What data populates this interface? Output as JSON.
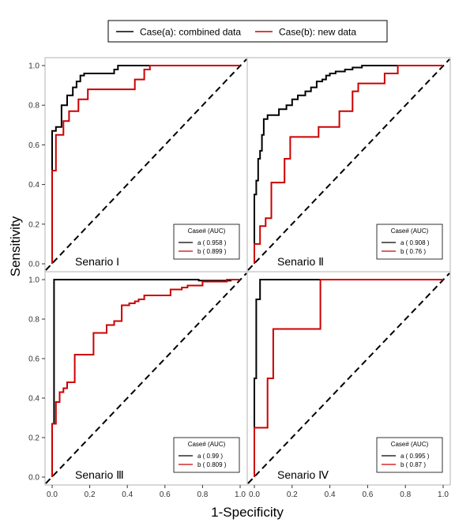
{
  "legend_top": {
    "entries": [
      {
        "label": "Case(a): combined data",
        "color": "#000000"
      },
      {
        "label": "Case(b): new data",
        "color": "#cc0000"
      }
    ]
  },
  "axis_labels": {
    "x": "1-Specificity",
    "y": "Sensitivity"
  },
  "colors": {
    "case_a": "#000000",
    "case_b": "#cc0000",
    "diagonal": "#000000",
    "panel_border": "#b3b3b3"
  },
  "chart_data": [
    {
      "type": "line",
      "panel": "top-left",
      "title": "Senario I",
      "xlim": [
        0,
        1
      ],
      "ylim": [
        0,
        1
      ],
      "x_ticks": [
        "0.0",
        "0.2",
        "0.4",
        "0.6",
        "0.8",
        "1.0"
      ],
      "y_ticks": [
        "0.0",
        "0.2",
        "0.4",
        "0.6",
        "0.8",
        "1.0"
      ],
      "legend": {
        "title": "Case# (AUC)",
        "position": "bottom-right",
        "entries": [
          "a ( 0.958 )",
          "b ( 0.899 )"
        ]
      },
      "series": [
        {
          "name": "a",
          "x": [
            0,
            0,
            0.02,
            0.02,
            0.05,
            0.05,
            0.08,
            0.08,
            0.11,
            0.11,
            0.13,
            0.13,
            0.15,
            0.15,
            0.17,
            0.17,
            0.2,
            0.2,
            0.33,
            0.33,
            0.35,
            0.35,
            1.0
          ],
          "y": [
            0,
            0.67,
            0.67,
            0.69,
            0.69,
            0.8,
            0.8,
            0.85,
            0.85,
            0.89,
            0.89,
            0.92,
            0.92,
            0.95,
            0.95,
            0.96,
            0.96,
            0.96,
            0.96,
            0.98,
            0.98,
            1.0,
            1.0
          ]
        },
        {
          "name": "b",
          "x": [
            0,
            0,
            0.02,
            0.02,
            0.03,
            0.03,
            0.06,
            0.06,
            0.09,
            0.09,
            0.11,
            0.11,
            0.14,
            0.14,
            0.19,
            0.19,
            0.44,
            0.44,
            0.49,
            0.49,
            0.52,
            0.52,
            1.0
          ],
          "y": [
            0,
            0.47,
            0.47,
            0.65,
            0.65,
            0.65,
            0.65,
            0.72,
            0.72,
            0.77,
            0.77,
            0.77,
            0.77,
            0.83,
            0.83,
            0.88,
            0.88,
            0.93,
            0.93,
            0.98,
            0.98,
            1.0,
            1.0
          ]
        }
      ]
    },
    {
      "type": "line",
      "panel": "top-right",
      "title": "Senario Ⅱ",
      "xlim": [
        0,
        1
      ],
      "ylim": [
        0,
        1
      ],
      "legend": {
        "title": "Case# (AUC)",
        "position": "bottom-right",
        "entries": [
          "a ( 0.908 )",
          "b ( 0.76 )"
        ]
      },
      "series": [
        {
          "name": "a",
          "x": [
            0,
            0,
            0.01,
            0.01,
            0.02,
            0.02,
            0.03,
            0.03,
            0.04,
            0.04,
            0.05,
            0.05,
            0.07,
            0.07,
            0.09,
            0.09,
            0.13,
            0.13,
            0.17,
            0.17,
            0.2,
            0.2,
            0.23,
            0.23,
            0.27,
            0.27,
            0.3,
            0.3,
            0.33,
            0.33,
            0.36,
            0.36,
            0.38,
            0.38,
            0.4,
            0.4,
            0.43,
            0.43,
            0.48,
            0.48,
            0.52,
            0.52,
            0.57,
            0.57,
            0.76,
            0.76,
            1.0
          ],
          "y": [
            0,
            0.35,
            0.35,
            0.42,
            0.42,
            0.53,
            0.53,
            0.57,
            0.57,
            0.65,
            0.65,
            0.73,
            0.73,
            0.75,
            0.75,
            0.75,
            0.75,
            0.78,
            0.78,
            0.8,
            0.8,
            0.83,
            0.83,
            0.85,
            0.85,
            0.87,
            0.87,
            0.89,
            0.89,
            0.92,
            0.92,
            0.93,
            0.93,
            0.95,
            0.95,
            0.96,
            0.96,
            0.97,
            0.97,
            0.98,
            0.98,
            0.99,
            0.99,
            1.0,
            1.0,
            1.0,
            1.0
          ]
        },
        {
          "name": "b",
          "x": [
            0,
            0,
            0.03,
            0.03,
            0.06,
            0.06,
            0.09,
            0.09,
            0.16,
            0.16,
            0.19,
            0.19,
            0.34,
            0.34,
            0.45,
            0.45,
            0.52,
            0.52,
            0.55,
            0.55,
            0.58,
            0.58,
            0.69,
            0.69,
            0.76,
            0.76,
            1.0
          ],
          "y": [
            0,
            0.1,
            0.1,
            0.19,
            0.19,
            0.23,
            0.23,
            0.41,
            0.41,
            0.53,
            0.53,
            0.64,
            0.64,
            0.69,
            0.69,
            0.77,
            0.77,
            0.87,
            0.87,
            0.91,
            0.91,
            0.91,
            0.91,
            0.96,
            0.96,
            1.0,
            1.0
          ]
        }
      ]
    },
    {
      "type": "line",
      "panel": "bottom-left",
      "title": "Senario Ⅲ",
      "xlim": [
        0,
        1
      ],
      "ylim": [
        0,
        1
      ],
      "x_ticks": [
        "0.0",
        "0.2",
        "0.4",
        "0.6",
        "0.8",
        "1.0"
      ],
      "y_ticks": [
        "0.0",
        "0.2",
        "0.4",
        "0.6",
        "0.8",
        "1.0"
      ],
      "legend": {
        "title": "Case# (AUC)",
        "position": "bottom-right",
        "entries": [
          "a ( 0.99 )",
          "b ( 0.809 )"
        ]
      },
      "series": [
        {
          "name": "a",
          "x": [
            0,
            0,
            0.01,
            0.01,
            0.78,
            0.78,
            0.95,
            0.95,
            1.0
          ],
          "y": [
            0,
            0.27,
            0.27,
            1.0,
            1.0,
            0.995,
            0.995,
            1.0,
            1.0
          ]
        },
        {
          "name": "b",
          "x": [
            0,
            0,
            0.02,
            0.02,
            0.04,
            0.04,
            0.06,
            0.06,
            0.08,
            0.08,
            0.1,
            0.1,
            0.12,
            0.12,
            0.22,
            0.22,
            0.29,
            0.29,
            0.33,
            0.33,
            0.37,
            0.37,
            0.41,
            0.41,
            0.44,
            0.44,
            0.46,
            0.46,
            0.49,
            0.49,
            0.55,
            0.55,
            0.63,
            0.63,
            0.69,
            0.69,
            0.72,
            0.72,
            0.8,
            0.8,
            0.93,
            0.93,
            1.0
          ],
          "y": [
            0,
            0.27,
            0.27,
            0.38,
            0.38,
            0.43,
            0.43,
            0.45,
            0.45,
            0.48,
            0.48,
            0.48,
            0.48,
            0.62,
            0.62,
            0.73,
            0.73,
            0.77,
            0.77,
            0.79,
            0.79,
            0.87,
            0.87,
            0.88,
            0.88,
            0.89,
            0.89,
            0.9,
            0.9,
            0.92,
            0.92,
            0.92,
            0.92,
            0.95,
            0.95,
            0.96,
            0.96,
            0.97,
            0.97,
            0.99,
            0.99,
            1.0,
            1.0
          ]
        }
      ]
    },
    {
      "type": "line",
      "panel": "bottom-right",
      "title": "Senario Ⅳ",
      "xlim": [
        0,
        1
      ],
      "ylim": [
        0,
        1
      ],
      "x_ticks": [
        "0.0",
        "0.2",
        "0.4",
        "0.6",
        "0.8",
        "1.0"
      ],
      "legend": {
        "title": "Case# (AUC)",
        "position": "bottom-right",
        "entries": [
          "a ( 0.995 )",
          "b ( 0.87 )"
        ]
      },
      "series": [
        {
          "name": "a",
          "x": [
            0,
            0,
            0.01,
            0.01,
            0.03,
            0.03,
            0.35,
            0.35,
            1.0
          ],
          "y": [
            0,
            0.5,
            0.5,
            0.9,
            0.9,
            1.0,
            1.0,
            1.0,
            1.0
          ]
        },
        {
          "name": "b",
          "x": [
            0,
            0,
            0.07,
            0.07,
            0.1,
            0.1,
            0.35,
            0.35,
            1.0
          ],
          "y": [
            0,
            0.25,
            0.25,
            0.5,
            0.5,
            0.75,
            0.75,
            1.0,
            1.0
          ]
        }
      ]
    }
  ]
}
